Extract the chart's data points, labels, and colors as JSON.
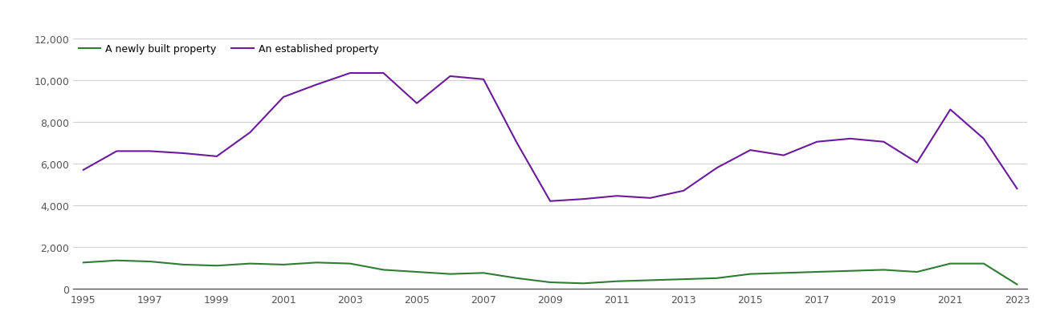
{
  "years": [
    1995,
    1996,
    1997,
    1998,
    1999,
    2000,
    2001,
    2002,
    2003,
    2004,
    2005,
    2006,
    2007,
    2008,
    2009,
    2010,
    2011,
    2012,
    2013,
    2014,
    2015,
    2016,
    2017,
    2018,
    2019,
    2020,
    2021,
    2022,
    2023
  ],
  "new_build": [
    1250,
    1350,
    1300,
    1150,
    1100,
    1200,
    1150,
    1250,
    1200,
    900,
    800,
    700,
    750,
    500,
    300,
    250,
    350,
    400,
    450,
    500,
    700,
    750,
    800,
    850,
    900,
    800,
    1200,
    1200,
    200
  ],
  "established": [
    5700,
    6600,
    6600,
    6500,
    6350,
    7500,
    9200,
    9800,
    10350,
    10350,
    8900,
    10200,
    10050,
    7000,
    4200,
    4300,
    4450,
    4350,
    4700,
    5800,
    6650,
    6400,
    7050,
    7200,
    7050,
    6050,
    8600,
    7200,
    4800
  ],
  "new_build_color": "#2e7d32",
  "established_color": "#6a1a9a",
  "legend_new": "A newly built property",
  "legend_established": "An established property",
  "ylim": [
    0,
    12000
  ],
  "yticks": [
    0,
    2000,
    4000,
    6000,
    8000,
    10000,
    12000
  ],
  "background_color": "#ffffff",
  "grid_color": "#d0d0d0",
  "line_width": 1.5,
  "figsize": [
    13.05,
    4.1
  ],
  "dpi": 100
}
